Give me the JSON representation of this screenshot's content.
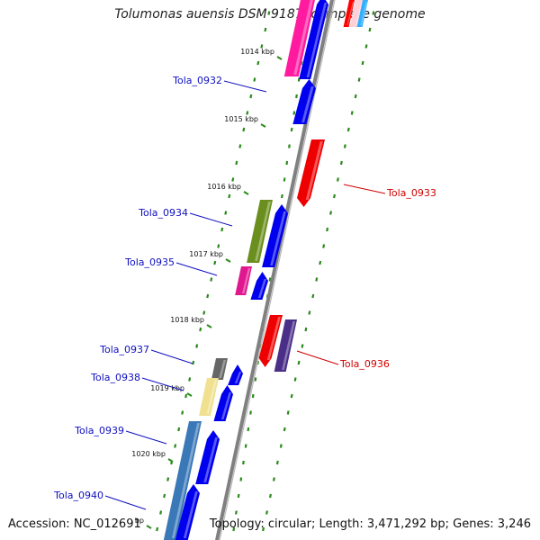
{
  "title": "Tolumonas auensis DSM 9187, complete genome",
  "footer": {
    "accession": "Accession: NC_012691",
    "topology": "Topology: circular; Length: 3,471,292 bp; Genes: 3,246"
  },
  "colors": {
    "backbone": "#808080",
    "tick": "#2a8a1a",
    "forward_label": "#1010c0",
    "reverse_label": "#d00000",
    "cds_forward": "#0000ee",
    "cds_reverse": "#ee0000"
  },
  "scale_ticks": [
    {
      "label": "1014 kbp"
    },
    {
      "label": "1015 kbp"
    },
    {
      "label": "1016 kbp"
    },
    {
      "label": "1017 kbp"
    },
    {
      "label": "1018 kbp"
    },
    {
      "label": "1019 kbp"
    },
    {
      "label": "1020 kbp"
    },
    {
      "label": "bp"
    }
  ],
  "gene_labels": [
    {
      "name": "Tola_0932",
      "strand": "forward"
    },
    {
      "name": "Tola_0933",
      "strand": "reverse"
    },
    {
      "name": "Tola_0934",
      "strand": "forward"
    },
    {
      "name": "Tola_0935",
      "strand": "forward"
    },
    {
      "name": "Tola_0936",
      "strand": "reverse"
    },
    {
      "name": "Tola_0937",
      "strand": "forward"
    },
    {
      "name": "Tola_0938",
      "strand": "forward"
    },
    {
      "name": "Tola_0939",
      "strand": "forward"
    },
    {
      "name": "Tola_0940",
      "strand": "forward"
    }
  ]
}
